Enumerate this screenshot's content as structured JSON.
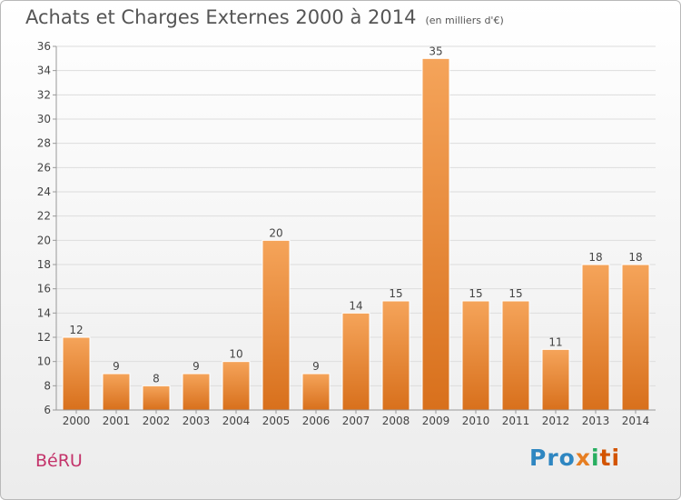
{
  "title": "Achats et Charges Externes 2000 à 2014",
  "subtitle": "(en milliers d'€)",
  "commune": "BéRU",
  "logo": {
    "p1": "Pro",
    "p2": "x",
    "p3": "i",
    "p4": "ti"
  },
  "colors": {
    "bar_top": "#f5a45a",
    "bar_bottom": "#d8701c",
    "grid": "#dddddd",
    "axis": "#999999",
    "text": "#444444"
  },
  "chart_data": {
    "type": "bar",
    "categories": [
      "2000",
      "2001",
      "2002",
      "2003",
      "2004",
      "2005",
      "2006",
      "2007",
      "2008",
      "2009",
      "2010",
      "2011",
      "2012",
      "2013",
      "2014"
    ],
    "values": [
      12,
      9,
      8,
      9,
      10,
      20,
      9,
      14,
      15,
      35,
      15,
      15,
      11,
      18,
      18
    ],
    "title": "Achats et Charges Externes 2000 à 2014",
    "ylim": [
      6,
      36
    ],
    "yticks": [
      6,
      8,
      10,
      12,
      14,
      16,
      18,
      20,
      22,
      24,
      26,
      28,
      30,
      32,
      34,
      36
    ],
    "grid": true,
    "data_labels": true
  }
}
